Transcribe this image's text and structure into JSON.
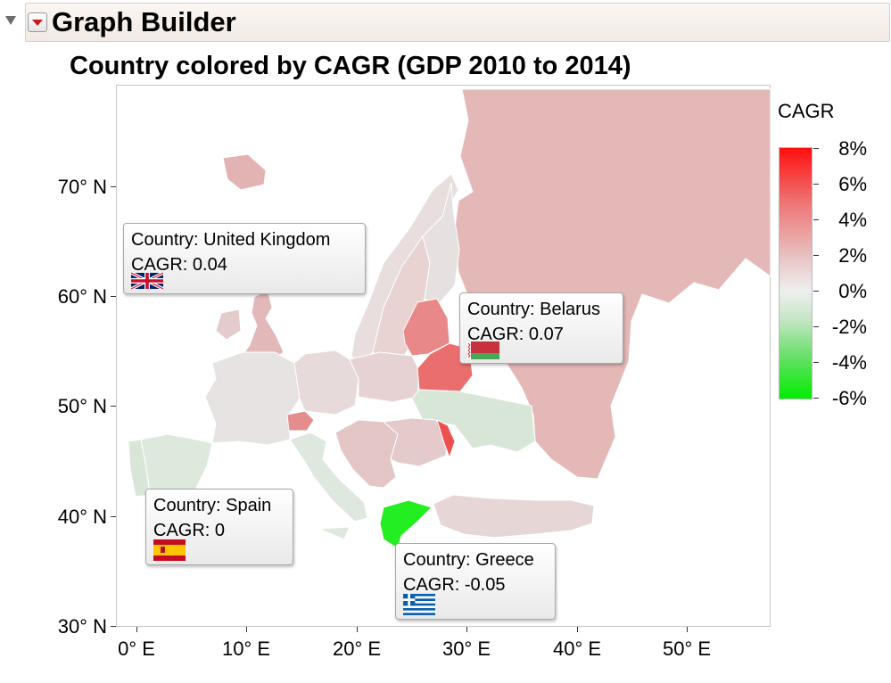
{
  "header": {
    "title": "Graph Builder"
  },
  "graph": {
    "title": "Country colored by CAGR (GDP 2010 to 2014)"
  },
  "map": {
    "y_axis_ticks": [
      "70° N",
      "60° N",
      "50° N",
      "40° N",
      "30° N"
    ],
    "x_axis_ticks": [
      "0° E",
      "10° E",
      "20° E",
      "30° E",
      "40° E",
      "50° E"
    ],
    "lat_range": [
      30,
      77
    ],
    "lon_range": [
      -2,
      57
    ],
    "regions": [
      {
        "name": "Russia",
        "fill": "#e5b8b8"
      },
      {
        "name": "Iceland",
        "fill": "#e3b3b3"
      },
      {
        "name": "Norway",
        "fill": "#e8dede"
      },
      {
        "name": "Sweden",
        "fill": "#e8d2d2"
      },
      {
        "name": "Finland",
        "fill": "#e6e0e0"
      },
      {
        "name": "United Kingdom",
        "fill": "#e3b8b8"
      },
      {
        "name": "Ireland",
        "fill": "#e4cccc"
      },
      {
        "name": "Spain",
        "fill": "#dde9dd"
      },
      {
        "name": "Portugal",
        "fill": "#d8e6d8"
      },
      {
        "name": "France",
        "fill": "#e7e3e3"
      },
      {
        "name": "Germany",
        "fill": "#e6dada"
      },
      {
        "name": "Poland",
        "fill": "#e6d2d2"
      },
      {
        "name": "Baltics",
        "fill": "#e88888"
      },
      {
        "name": "Belarus",
        "fill": "#ea6e6e"
      },
      {
        "name": "Ukraine",
        "fill": "#d8e6d8"
      },
      {
        "name": "Italy",
        "fill": "#dfe8df"
      },
      {
        "name": "Balkans",
        "fill": "#e4c6c6"
      },
      {
        "name": "Romania",
        "fill": "#e4caca"
      },
      {
        "name": "Moldova",
        "fill": "#ee5050"
      },
      {
        "name": "Greece",
        "fill": "#22ee22"
      },
      {
        "name": "Turkey",
        "fill": "#e6d6d6"
      },
      {
        "name": "Switzerland",
        "fill": "#e38d8d"
      }
    ]
  },
  "legend": {
    "title": "CAGR",
    "labels": [
      "8%",
      "6%",
      "4%",
      "2%",
      "0%",
      "-2%",
      "-4%",
      "-6%"
    ],
    "colors": {
      "max": "#ff0f0f",
      "mid": "#efefef",
      "min": "#00ee00"
    }
  },
  "tooltips": [
    {
      "country_line": "Country: United Kingdom",
      "cagr_line": "CAGR: 0.04",
      "flag": "uk-flag"
    },
    {
      "country_line": "Country: Belarus",
      "cagr_line": "CAGR: 0.07",
      "flag": "belarus-flag"
    },
    {
      "country_line": "Country: Spain",
      "cagr_line": "CAGR: 0",
      "flag": "spain-flag"
    },
    {
      "country_line": "Country: Greece",
      "cagr_line": "CAGR: -0.05",
      "flag": "greece-flag"
    }
  ]
}
